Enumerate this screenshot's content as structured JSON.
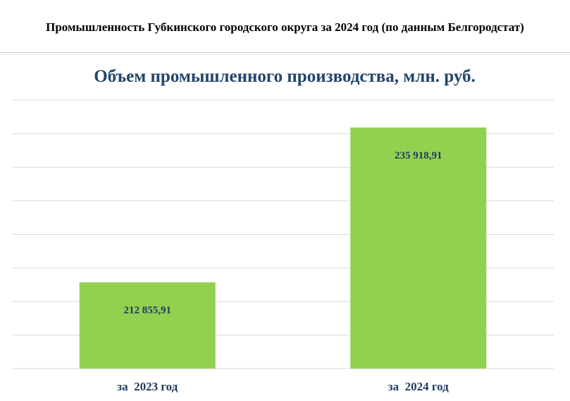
{
  "page": {
    "header": "Промышленность Губкинского городского округа за 2024 год (по данным Белгородстат)"
  },
  "colors": {
    "bar": "#92d050",
    "title": "#24456b",
    "label": "#1f3a5f",
    "grid": "#d9d9d9"
  },
  "chart_data": {
    "type": "bar",
    "title": "Объем промышленного производства, млн. руб.",
    "categories": [
      "за  2023 год",
      "за  2024 год"
    ],
    "values": [
      212855.91,
      235918.91
    ],
    "value_labels": [
      "212 855,91",
      "235 918,91"
    ],
    "ylim": [
      200000,
      240000
    ],
    "grid": true,
    "xlabel": "",
    "ylabel": ""
  }
}
